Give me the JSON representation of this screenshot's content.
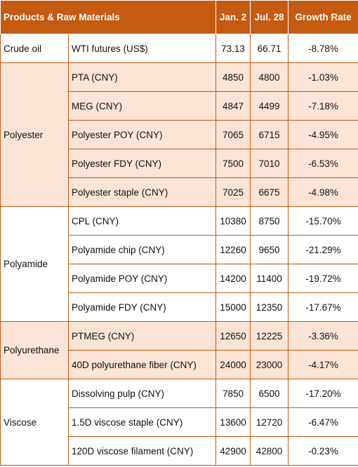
{
  "header": [
    "Products & Raw Materials",
    "Jan. 2",
    "Jul. 28",
    "Growth Rate"
  ],
  "groups": [
    {
      "name": "Crude oil",
      "shaded": false,
      "rows": [
        [
          "WTI futures (US$)",
          "73.13",
          "66.71",
          "-8.78%"
        ]
      ]
    },
    {
      "name": "Polyester",
      "shaded": true,
      "rows": [
        [
          "PTA (CNY)",
          "4850",
          "4800",
          "-1.03%"
        ],
        [
          "MEG (CNY)",
          "4847",
          "4499",
          "-7.18%"
        ],
        [
          "Polyester POY (CNY)",
          "7065",
          "6715",
          "-4.95%"
        ],
        [
          "Polyester FDY (CNY)",
          "7500",
          "7010",
          "-6.53%"
        ],
        [
          "Polyester staple (CNY)",
          "7025",
          "6675",
          "-4.98%"
        ]
      ]
    },
    {
      "name": "Polyamide",
      "shaded": false,
      "rows": [
        [
          "CPL (CNY)",
          "10380",
          "8750",
          "-15.70%"
        ],
        [
          "Polyamide chip (CNY)",
          "12260",
          "9650",
          "-21.29%"
        ],
        [
          "Polyamide POY (CNY)",
          "14200",
          "11400",
          "-19.72%"
        ],
        [
          "Polyamide FDY (CNY)",
          "15000",
          "12350",
          "-17.67%"
        ]
      ]
    },
    {
      "name": "Polyurethane",
      "shaded": true,
      "rows": [
        [
          "PTMEG (CNY)",
          "12650",
          "12225",
          "-3.36%"
        ],
        [
          "40D polyurethane fiber (CNY)",
          "24000",
          "23000",
          "-4.17%"
        ]
      ]
    },
    {
      "name": "Viscose",
      "shaded": false,
      "rows": [
        [
          "Dissolving pulp (CNY)",
          "7850",
          "6500",
          "-17.20%"
        ],
        [
          "1.5D viscose staple (CNY)",
          "13600",
          "12720",
          "-6.47%"
        ],
        [
          "120D viscose filament (CNY)",
          "42900",
          "42800",
          "-0.23%"
        ]
      ]
    }
  ]
}
